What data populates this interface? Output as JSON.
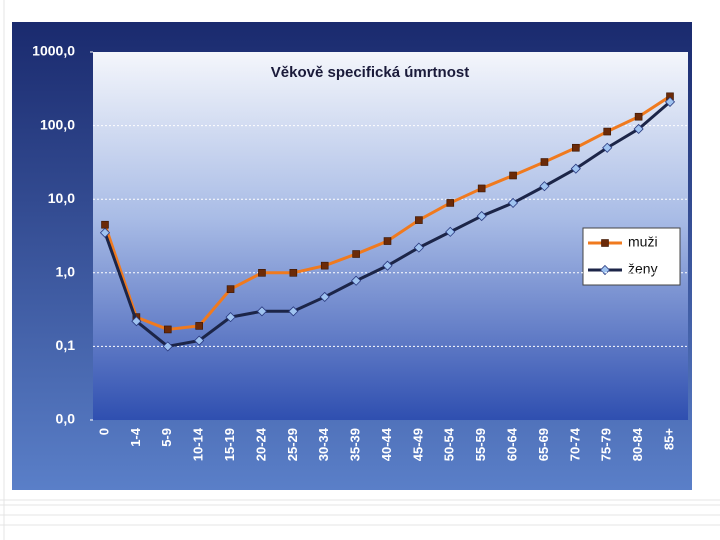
{
  "chart_data": {
    "type": "line",
    "title": "Věkově specifická úmrtnost",
    "categories": [
      "0",
      "1-4",
      "5-9",
      "10-14",
      "15-19",
      "20-24",
      "25-29",
      "30-34",
      "35-39",
      "40-44",
      "45-49",
      "50-54",
      "55-59",
      "60-64",
      "65-69",
      "70-74",
      "75-79",
      "80-84",
      "85+"
    ],
    "series": [
      {
        "name": "muži",
        "color": "#f07a1e",
        "marker_color": "#6b2a08",
        "marker": "square",
        "values": [
          4.5,
          0.25,
          0.17,
          0.19,
          0.6,
          1.0,
          1.0,
          1.25,
          1.8,
          2.7,
          5.2,
          8.9,
          14,
          21,
          32,
          50,
          83,
          132,
          250
        ]
      },
      {
        "name": "ženy",
        "color": "#1c2548",
        "marker_color": "#9fc3f0",
        "marker": "diamond",
        "values": [
          3.5,
          0.22,
          0.1,
          0.12,
          0.25,
          0.3,
          0.3,
          0.47,
          0.78,
          1.25,
          2.2,
          3.6,
          5.9,
          8.9,
          15,
          26,
          50,
          90,
          210
        ]
      }
    ],
    "log_scale": true,
    "ylim": [
      0.01,
      1000
    ],
    "yticks": [
      {
        "value": 0.01,
        "label": "0,0"
      },
      {
        "value": 0.1,
        "label": "0,1"
      },
      {
        "value": 1,
        "label": "1,0"
      },
      {
        "value": 10,
        "label": "10,0"
      },
      {
        "value": 100,
        "label": "100,0"
      },
      {
        "value": 1000,
        "label": "1000,0"
      }
    ],
    "grid": true,
    "legend": "right"
  }
}
